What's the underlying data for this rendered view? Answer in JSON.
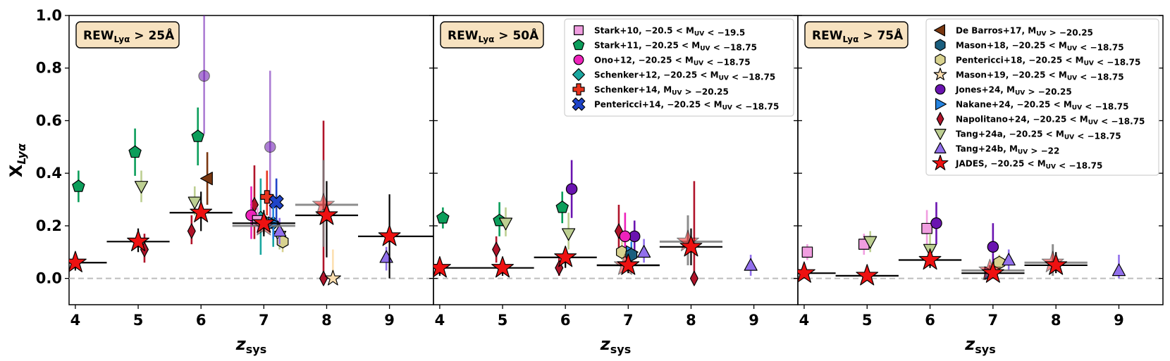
{
  "figure": {
    "xlabel": "z_sys",
    "ylabel": "X_Lyα",
    "x_ticks": [
      4,
      5,
      6,
      7,
      8,
      9
    ],
    "y_ticks": [
      "0.0",
      "0.2",
      "0.4",
      "0.6",
      "0.8",
      "1.0"
    ],
    "xlim": [
      3.9,
      9.7
    ],
    "ylim": [
      -0.1,
      1.0
    ],
    "panel_labels": [
      "REW_Lyα > 25Å",
      "REW_Lyα > 50Å",
      "REW_Lyα > 75Å"
    ]
  },
  "styles": [
    {
      "label": "Stark+10, −20.5 < M_UV < −19.5",
      "marker": "square",
      "color": "#f09ee0"
    },
    {
      "label": "Stark+11, −20.25 < M_UV < −18.75",
      "marker": "pentagon",
      "color": "#0c9e5b"
    },
    {
      "label": "Ono+12, −20.25 < M_UV < −18.75",
      "marker": "circle",
      "color": "#ee22bb"
    },
    {
      "label": "Schenker+12, −20.25 < M_UV < −18.75",
      "marker": "diamond",
      "color": "#1aa7a0"
    },
    {
      "label": "Schenker+14, M_UV > −20.25",
      "marker": "plus",
      "color": "#e8331d"
    },
    {
      "label": "Pentericci+14, −20.25 < M_UV < −18.75",
      "marker": "x",
      "color": "#1f44c8"
    },
    {
      "label": "De Barros+17, M_UV > −20.25",
      "marker": "tri-left",
      "color": "#7a3710"
    },
    {
      "label": "Mason+18, −20.25 < M_UV < −18.75",
      "marker": "hexagon",
      "color": "#1a5e7e"
    },
    {
      "label": "Pentericci+18, −20.25 < M_UV < −18.75",
      "marker": "hexagon",
      "color": "#d8d28f"
    },
    {
      "label": "Mason+19, −20.25 < M_UV < −18.75",
      "marker": "star",
      "color": "#fcdfb0"
    },
    {
      "label": "Jones+24, M_UV > −20.25",
      "marker": "circle",
      "color": "#6a14b0"
    },
    {
      "label": "Nakane+24, −20.25 < M_UV < −18.75",
      "marker": "tri-right",
      "color": "#2684e0"
    },
    {
      "label": "Napolitano+24, −20.25 < M_UV < −18.75",
      "marker": "thin-diamond",
      "color": "#b0142a"
    },
    {
      "label": "Tang+24a, −20.25 < M_UV < −18.75",
      "marker": "tri-down",
      "color": "#bdcf92"
    },
    {
      "label": "Tang+24b, M_UV > −22",
      "marker": "tri-up",
      "color": "#9270ec"
    },
    {
      "label": "JADES,  −20.25 < M_UV < −18.75",
      "marker": "star",
      "color": "#ee1111"
    }
  ],
  "legends": [
    {
      "panel": 1,
      "entries": [
        0,
        1,
        2,
        3,
        4,
        5
      ]
    },
    {
      "panel": 2,
      "entries": [
        6,
        7,
        8,
        9,
        10,
        11,
        12,
        13,
        14,
        15
      ]
    }
  ],
  "chart_data": [
    {
      "type": "scatter",
      "title": "REW_Lyα > 25Å",
      "xlabel": "z_sys",
      "ylabel": "X_Lyα",
      "xlim": [
        3.9,
        9.7
      ],
      "ylim": [
        -0.1,
        1.0
      ],
      "series": [
        {
          "style": 1,
          "points": [
            {
              "x": 4.05,
              "y": 0.35,
              "lo": 0.29,
              "hi": 0.41
            },
            {
              "x": 4.95,
              "y": 0.48,
              "lo": 0.39,
              "hi": 0.57
            },
            {
              "x": 5.95,
              "y": 0.54,
              "lo": 0.43,
              "hi": 0.65
            }
          ]
        },
        {
          "style": 13,
          "points": [
            {
              "x": 5.05,
              "y": 0.35,
              "lo": 0.29,
              "hi": 0.41
            },
            {
              "x": 5.9,
              "y": 0.29,
              "lo": 0.24,
              "hi": 0.35
            },
            {
              "x": 7.25,
              "y": 0.16,
              "lo": 0.11,
              "hi": 0.21
            }
          ]
        },
        {
          "style": 6,
          "points": [
            {
              "x": 6.1,
              "y": 0.38,
              "lo": 0.28,
              "hi": 0.48
            }
          ]
        },
        {
          "style": 10,
          "alpha": 0.55,
          "points": [
            {
              "x": 6.05,
              "y": 0.77,
              "lo": 0.55,
              "hi": 1.0
            },
            {
              "x": 7.1,
              "y": 0.5,
              "lo": 0.2,
              "hi": 0.79
            }
          ]
        },
        {
          "style": 12,
          "points": [
            {
              "x": 5.1,
              "y": 0.11,
              "lo": 0.06,
              "hi": 0.17
            },
            {
              "x": 5.85,
              "y": 0.18,
              "lo": 0.13,
              "hi": 0.24
            },
            {
              "x": 6.85,
              "y": 0.28,
              "lo": 0.15,
              "hi": 0.43
            },
            {
              "x": 7.95,
              "y": 0.0,
              "lo": 0.0,
              "hi": 0.6
            }
          ]
        },
        {
          "style": 2,
          "points": [
            {
              "x": 6.8,
              "y": 0.24,
              "lo": 0.15,
              "hi": 0.35
            }
          ]
        },
        {
          "style": 3,
          "points": [
            {
              "x": 6.95,
              "y": 0.23,
              "lo": 0.09,
              "hi": 0.38
            },
            {
              "x": 7.15,
              "y": 0.21,
              "lo": 0.12,
              "hi": 0.3
            }
          ]
        },
        {
          "style": 4,
          "points": [
            {
              "x": 7.05,
              "y": 0.31,
              "lo": 0.24,
              "hi": 0.41
            }
          ]
        },
        {
          "style": 5,
          "points": [
            {
              "x": 7.2,
              "y": 0.29,
              "lo": 0.2,
              "hi": 0.38
            }
          ]
        },
        {
          "style": 8,
          "points": [
            {
              "x": 7.3,
              "y": 0.14,
              "lo": 0.1,
              "hi": 0.19
            }
          ]
        },
        {
          "style": 14,
          "points": [
            {
              "x": 7.25,
              "y": 0.18,
              "lo": 0.13,
              "hi": 0.23
            },
            {
              "x": 8.95,
              "y": 0.08,
              "lo": 0.03,
              "hi": 0.12
            }
          ]
        },
        {
          "style": 11,
          "points": [
            {
              "x": 7.15,
              "y": 0.21,
              "lo": 0.15,
              "hi": 0.27
            }
          ]
        },
        {
          "style": 0,
          "points": [
            {
              "x": 6.9,
              "y": 0.22,
              "lo": 0.17,
              "hi": 0.27
            }
          ]
        },
        {
          "style": 9,
          "points": [
            {
              "x": 8.1,
              "y": 0.0,
              "lo": 0.0,
              "hi": 0.11
            }
          ]
        },
        {
          "style": 15,
          "alpha": 0.5,
          "points": [
            {
              "x": 7.0,
              "y": 0.2,
              "lo": 0.17,
              "hi": 0.23,
              "xlo": 6.5,
              "xhi": 7.5
            },
            {
              "x": 7.95,
              "y": 0.28,
              "lo": 0.12,
              "hi": 0.45,
              "xlo": 7.5,
              "xhi": 8.5
            }
          ]
        },
        {
          "style": 15,
          "points": [
            {
              "x": 4.0,
              "y": 0.06,
              "lo": 0.03,
              "hi": 0.1,
              "xlo": 3.9,
              "xhi": 4.5
            },
            {
              "x": 5.0,
              "y": 0.14,
              "lo": 0.1,
              "hi": 0.19,
              "xlo": 4.5,
              "xhi": 5.5
            },
            {
              "x": 6.0,
              "y": 0.25,
              "lo": 0.18,
              "hi": 0.33,
              "xlo": 5.5,
              "xhi": 6.5
            },
            {
              "x": 7.0,
              "y": 0.21,
              "lo": 0.16,
              "hi": 0.26,
              "xlo": 6.5,
              "xhi": 7.5
            },
            {
              "x": 8.0,
              "y": 0.24,
              "lo": 0.08,
              "hi": 0.37,
              "xlo": 7.5,
              "xhi": 8.5
            },
            {
              "x": 9.0,
              "y": 0.16,
              "lo": 0.0,
              "hi": 0.32,
              "xlo": 8.5,
              "xhi": 9.7
            }
          ]
        }
      ]
    },
    {
      "type": "scatter",
      "title": "REW_Lyα > 50Å",
      "xlabel": "z_sys",
      "ylabel": "X_Lyα",
      "xlim": [
        3.9,
        9.7
      ],
      "ylim": [
        -0.1,
        1.0
      ],
      "series": [
        {
          "style": 1,
          "points": [
            {
              "x": 4.05,
              "y": 0.23,
              "lo": 0.19,
              "hi": 0.27
            },
            {
              "x": 4.95,
              "y": 0.22,
              "lo": 0.16,
              "hi": 0.29
            },
            {
              "x": 5.95,
              "y": 0.27,
              "lo": 0.21,
              "hi": 0.33
            }
          ]
        },
        {
          "style": 13,
          "points": [
            {
              "x": 5.05,
              "y": 0.21,
              "lo": 0.16,
              "hi": 0.27
            },
            {
              "x": 6.05,
              "y": 0.17,
              "lo": 0.11,
              "hi": 0.25
            }
          ]
        },
        {
          "style": 10,
          "points": [
            {
              "x": 6.1,
              "y": 0.34,
              "lo": 0.23,
              "hi": 0.45
            },
            {
              "x": 7.1,
              "y": 0.16,
              "lo": 0.1,
              "hi": 0.22
            }
          ]
        },
        {
          "style": 12,
          "points": [
            {
              "x": 4.9,
              "y": 0.11,
              "lo": 0.06,
              "hi": 0.16
            },
            {
              "x": 5.9,
              "y": 0.04,
              "lo": 0.01,
              "hi": 0.08
            },
            {
              "x": 6.85,
              "y": 0.18,
              "lo": 0.09,
              "hi": 0.28
            },
            {
              "x": 8.05,
              "y": 0.0,
              "lo": 0.0,
              "hi": 0.37
            }
          ]
        },
        {
          "style": 2,
          "points": [
            {
              "x": 6.95,
              "y": 0.16,
              "lo": 0.08,
              "hi": 0.25
            }
          ]
        },
        {
          "style": 8,
          "points": [
            {
              "x": 6.9,
              "y": 0.1,
              "lo": 0.07,
              "hi": 0.14
            }
          ]
        },
        {
          "style": 11,
          "points": [
            {
              "x": 7.05,
              "y": 0.1,
              "lo": 0.06,
              "hi": 0.14
            }
          ]
        },
        {
          "style": 7,
          "points": [
            {
              "x": 7.05,
              "y": 0.09,
              "lo": 0.06,
              "hi": 0.12
            }
          ]
        },
        {
          "style": 14,
          "points": [
            {
              "x": 7.25,
              "y": 0.1,
              "lo": 0.06,
              "hi": 0.15
            },
            {
              "x": 8.95,
              "y": 0.05,
              "lo": 0.01,
              "hi": 0.09
            }
          ]
        },
        {
          "style": 15,
          "alpha": 0.5,
          "points": [
            {
              "x": 6.95,
              "y": 0.05,
              "lo": 0.03,
              "hi": 0.07,
              "xlo": 6.5,
              "xhi": 7.5
            },
            {
              "x": 7.95,
              "y": 0.14,
              "lo": 0.05,
              "hi": 0.24,
              "xlo": 7.5,
              "xhi": 8.5
            }
          ]
        },
        {
          "style": 15,
          "points": [
            {
              "x": 4.0,
              "y": 0.04,
              "lo": 0.01,
              "hi": 0.06,
              "xlo": 3.9,
              "xhi": 4.5
            },
            {
              "x": 5.0,
              "y": 0.04,
              "lo": 0.01,
              "hi": 0.07,
              "xlo": 4.5,
              "xhi": 5.5
            },
            {
              "x": 6.0,
              "y": 0.08,
              "lo": 0.04,
              "hi": 0.12,
              "xlo": 5.5,
              "xhi": 6.5
            },
            {
              "x": 7.0,
              "y": 0.05,
              "lo": 0.02,
              "hi": 0.08,
              "xlo": 6.5,
              "xhi": 7.5
            },
            {
              "x": 8.0,
              "y": 0.12,
              "lo": 0.05,
              "hi": 0.19,
              "xlo": 7.5,
              "xhi": 8.5
            }
          ]
        }
      ]
    },
    {
      "type": "scatter",
      "title": "REW_Lyα > 75Å",
      "xlabel": "z_sys",
      "ylabel": "X_Lyα",
      "xlim": [
        3.9,
        9.7
      ],
      "ylim": [
        -0.1,
        1.0
      ],
      "series": [
        {
          "style": 0,
          "points": [
            {
              "x": 4.05,
              "y": 0.1,
              "lo": 0.07,
              "hi": 0.13
            },
            {
              "x": 4.95,
              "y": 0.13,
              "lo": 0.09,
              "hi": 0.17
            },
            {
              "x": 5.95,
              "y": 0.19,
              "lo": 0.13,
              "hi": 0.26
            }
          ]
        },
        {
          "style": 13,
          "points": [
            {
              "x": 5.05,
              "y": 0.14,
              "lo": 0.1,
              "hi": 0.18
            },
            {
              "x": 6.0,
              "y": 0.11,
              "lo": 0.06,
              "hi": 0.17
            }
          ]
        },
        {
          "style": 10,
          "points": [
            {
              "x": 6.1,
              "y": 0.21,
              "lo": 0.13,
              "hi": 0.29
            },
            {
              "x": 7.0,
              "y": 0.12,
              "lo": 0.04,
              "hi": 0.21
            }
          ]
        },
        {
          "style": 8,
          "points": [
            {
              "x": 7.1,
              "y": 0.06,
              "lo": 0.03,
              "hi": 0.09
            }
          ]
        },
        {
          "style": 11,
          "points": [
            {
              "x": 6.95,
              "y": 0.02,
              "lo": 0.0,
              "hi": 0.05
            }
          ]
        },
        {
          "style": 14,
          "points": [
            {
              "x": 7.25,
              "y": 0.07,
              "lo": 0.03,
              "hi": 0.11
            },
            {
              "x": 9.0,
              "y": 0.03,
              "lo": 0.0,
              "hi": 0.09
            }
          ]
        },
        {
          "style": 15,
          "alpha": 0.5,
          "points": [
            {
              "x": 6.95,
              "y": 0.03,
              "lo": 0.01,
              "hi": 0.05,
              "xlo": 6.5,
              "xhi": 7.5
            },
            {
              "x": 7.95,
              "y": 0.06,
              "lo": 0.01,
              "hi": 0.13,
              "xlo": 7.5,
              "xhi": 8.5
            }
          ]
        },
        {
          "style": 15,
          "points": [
            {
              "x": 4.0,
              "y": 0.02,
              "lo": 0.0,
              "hi": 0.04,
              "xlo": 3.9,
              "xhi": 4.5
            },
            {
              "x": 5.0,
              "y": 0.01,
              "lo": 0.0,
              "hi": 0.03,
              "xlo": 4.5,
              "xhi": 5.5
            },
            {
              "x": 6.0,
              "y": 0.07,
              "lo": 0.04,
              "hi": 0.1,
              "xlo": 5.5,
              "xhi": 6.5
            },
            {
              "x": 7.0,
              "y": 0.02,
              "lo": 0.0,
              "hi": 0.05,
              "xlo": 6.5,
              "xhi": 7.5
            },
            {
              "x": 8.0,
              "y": 0.05,
              "lo": 0.02,
              "hi": 0.1,
              "xlo": 7.5,
              "xhi": 8.5
            }
          ]
        }
      ]
    }
  ]
}
